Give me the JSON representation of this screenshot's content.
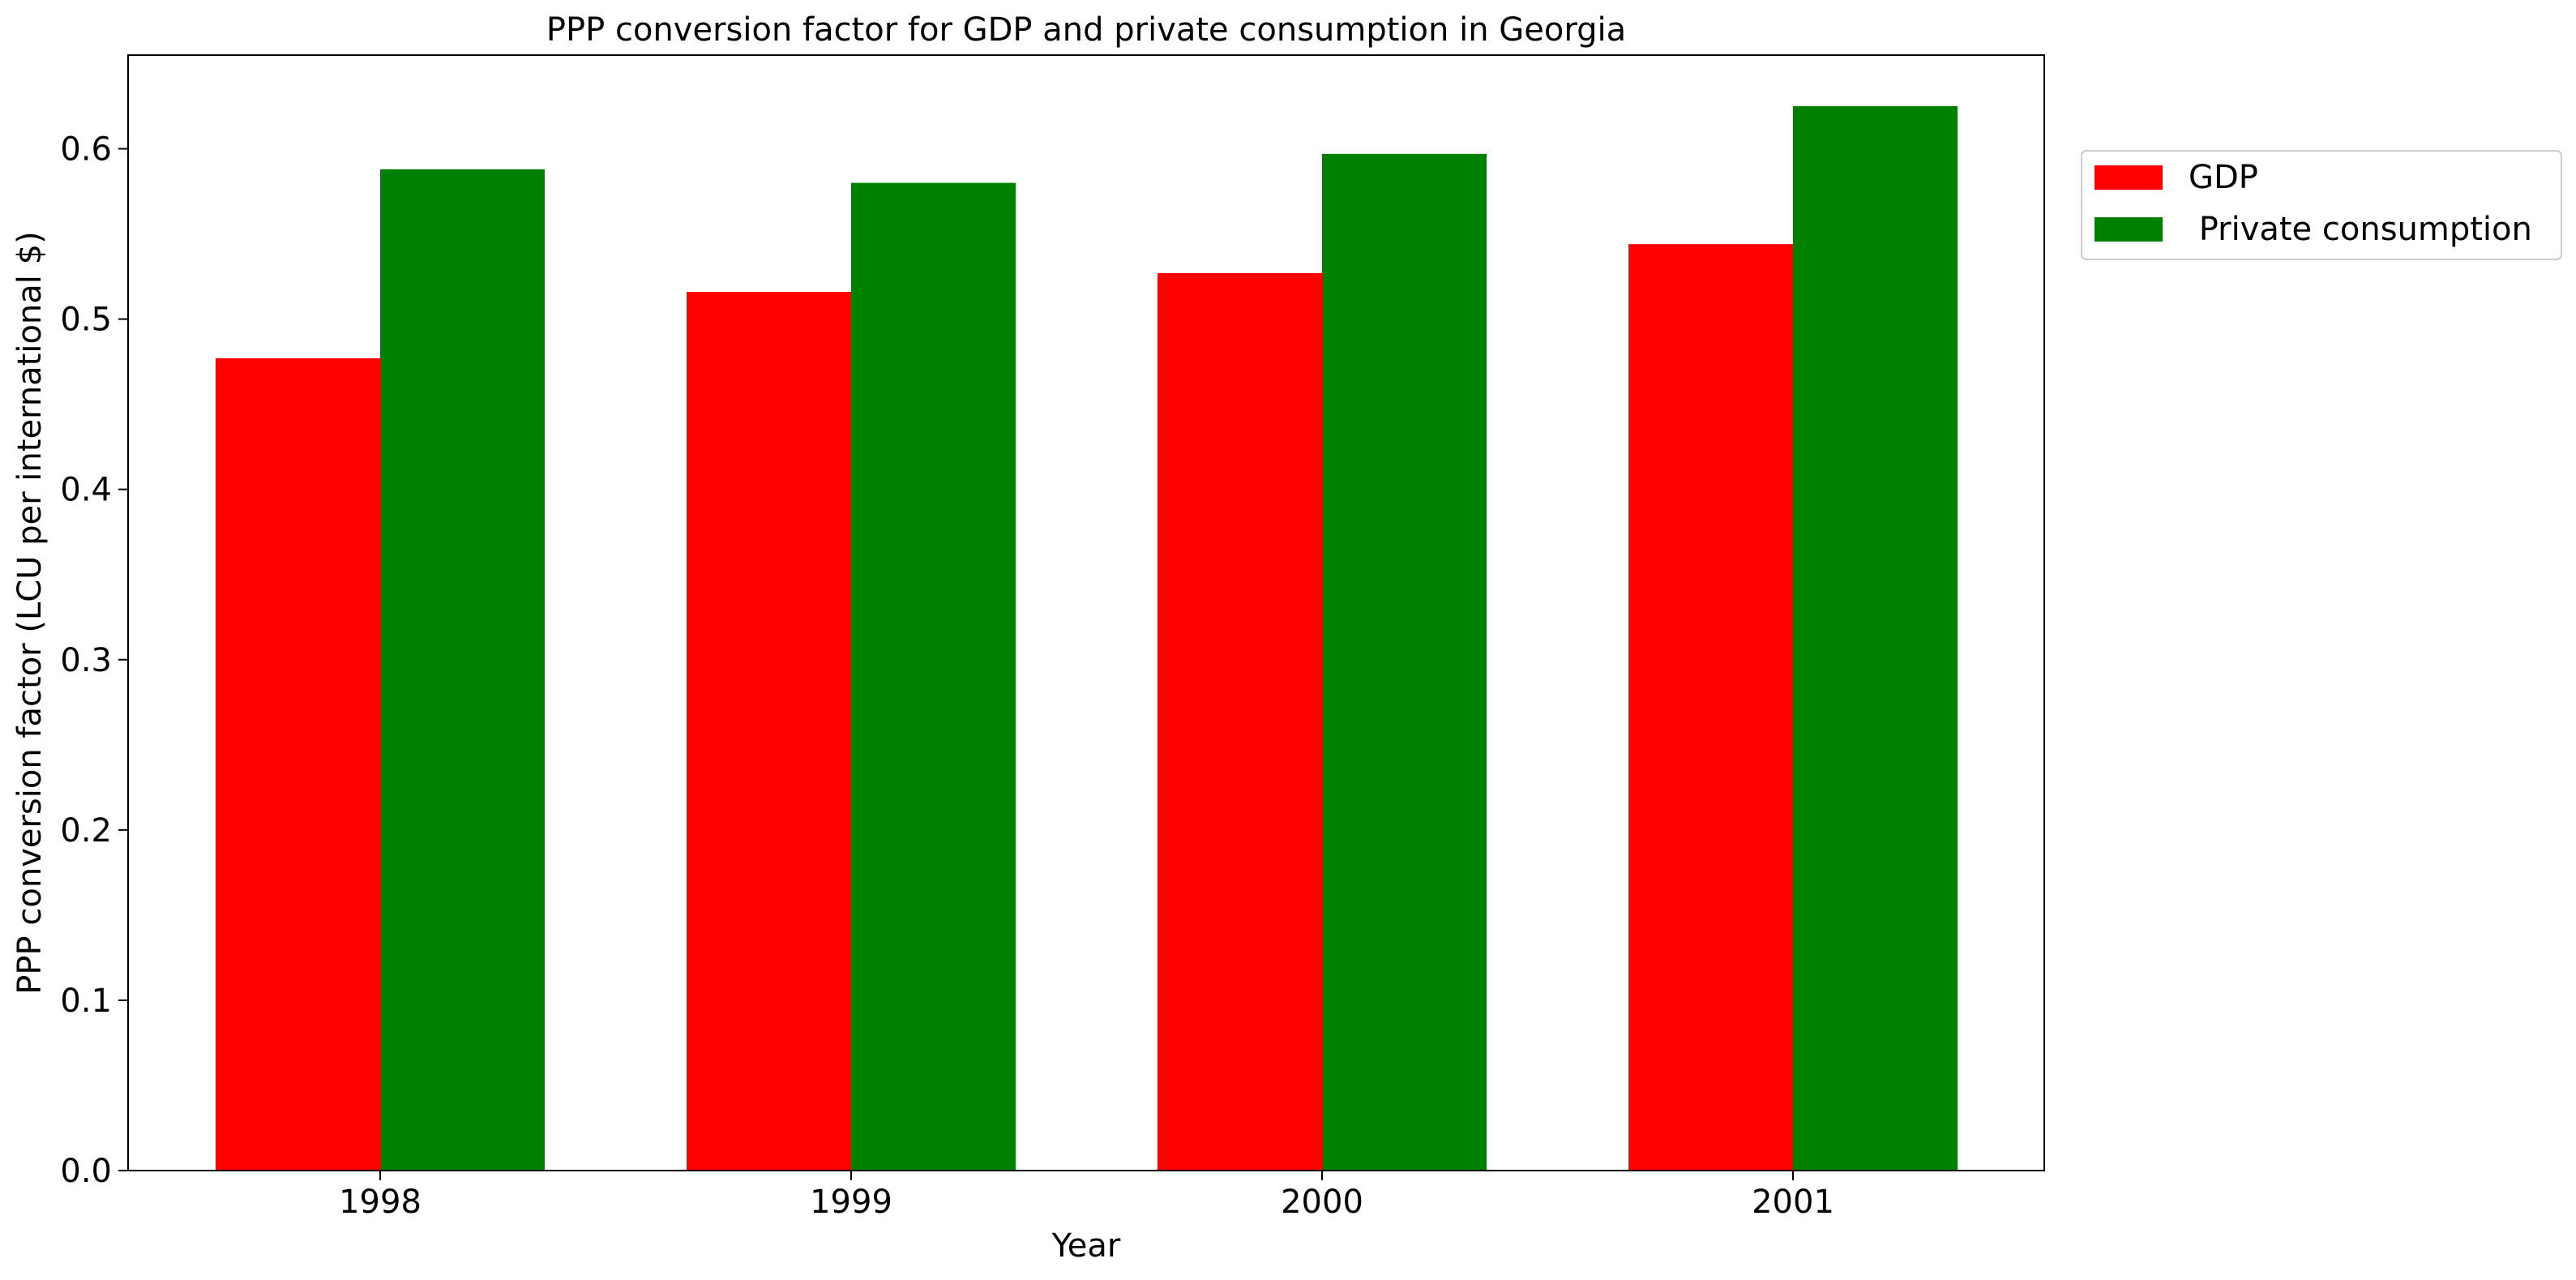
{
  "chart_data": {
    "type": "bar",
    "title": "PPP conversion factor for GDP and private consumption in Georgia",
    "xlabel": "Year",
    "ylabel": "PPP conversion factor (LCU per international $)",
    "categories": [
      "1998",
      "1999",
      "2000",
      "2001"
    ],
    "series": [
      {
        "name": "GDP",
        "color": "#ff0000",
        "values": [
          0.477,
          0.516,
          0.527,
          0.544
        ]
      },
      {
        "name": " Private consumption",
        "color": "#008000",
        "values": [
          0.588,
          0.58,
          0.597,
          0.625
        ]
      }
    ],
    "ylim": [
      0,
      0.655
    ],
    "yticks": [
      "0.0",
      "0.1",
      "0.2",
      "0.3",
      "0.4",
      "0.5",
      "0.6"
    ],
    "grid": false,
    "legend_position": "upper right, outside plot area"
  }
}
